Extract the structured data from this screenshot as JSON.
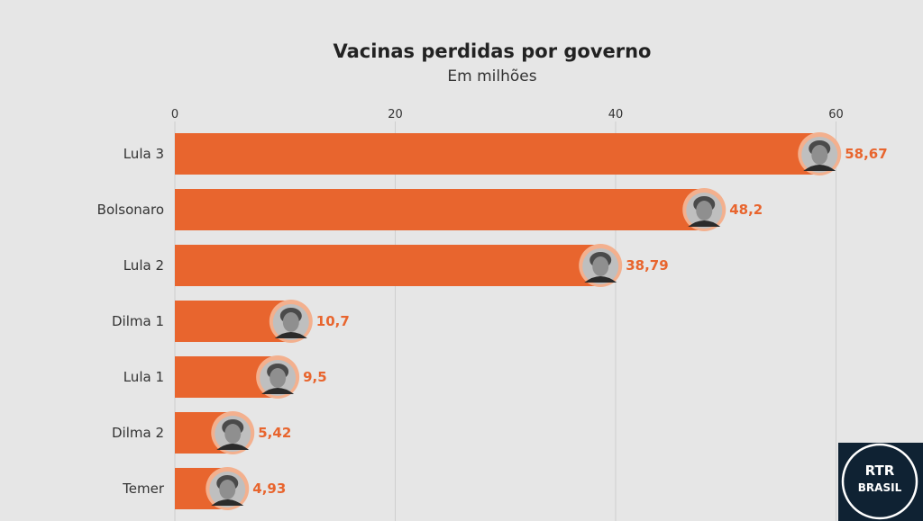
{
  "chart_data": {
    "type": "bar",
    "orientation": "horizontal",
    "title": "Vacinas perdidas por governo",
    "subtitle": "Em milhões",
    "categories": [
      "Lula 3",
      "Bolsonaro",
      "Lula 2",
      "Dilma 1",
      "Lula 1",
      "Dilma 2",
      "Temer"
    ],
    "values": [
      58.67,
      48.2,
      38.79,
      10.7,
      9.5,
      5.42,
      4.93
    ],
    "value_labels": [
      "58,67",
      "48,2",
      "38,79",
      "10,7",
      "9,5",
      "5,42",
      "4,93"
    ],
    "xticks": [
      "0",
      "20",
      "40",
      "60"
    ],
    "xtick_values": [
      0,
      20,
      40,
      60
    ],
    "xlim": [
      0,
      65
    ],
    "axis_position": "top",
    "grid": true,
    "bar_color": "#e8652e",
    "label_color": "#e8652e",
    "marker_icon": "portrait-photo"
  },
  "logo": {
    "line1": "RTR",
    "line2": "BRASIL",
    "icon": "rtr-brasil-logo"
  },
  "colors": {
    "background": "#e6e6e6",
    "bar": "#e8652e",
    "portrait_ring": "#f3b08e",
    "logo_bg": "#0f2233"
  }
}
